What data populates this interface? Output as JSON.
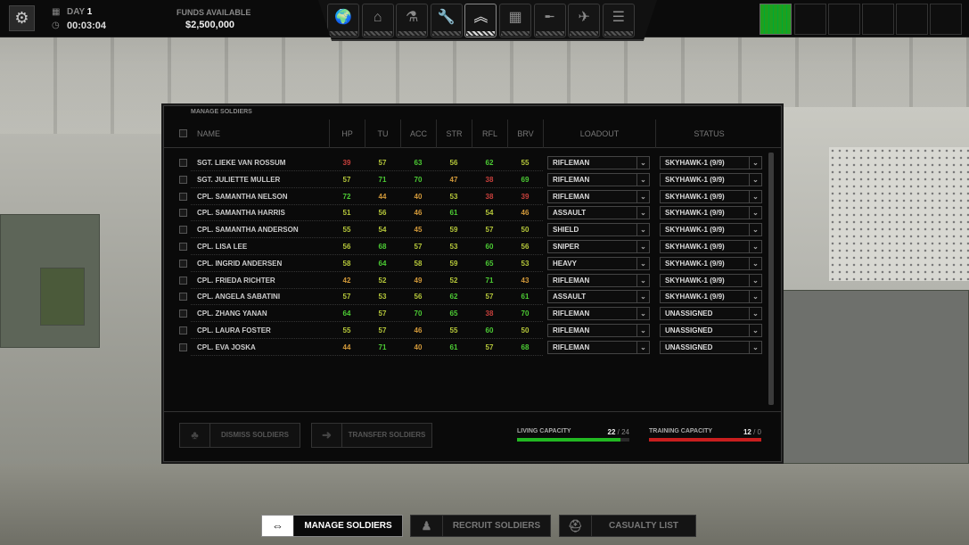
{
  "topbar": {
    "day_label": "DAY",
    "day_value": "1",
    "clock": "00:03:04",
    "funds_label": "FUNDS AVAILABLE",
    "funds_value": "$2,500,000"
  },
  "nav": {
    "items": [
      {
        "icon": "globe-icon",
        "glyph": "🌍"
      },
      {
        "icon": "base-icon",
        "glyph": "⌂"
      },
      {
        "icon": "microscope-icon",
        "glyph": "⚗"
      },
      {
        "icon": "wrench-icon",
        "glyph": "🔧"
      },
      {
        "icon": "sergeant-chevron-icon",
        "glyph": "︽",
        "active": true
      },
      {
        "icon": "crates-icon",
        "glyph": "▦"
      },
      {
        "icon": "rifle-icon",
        "glyph": "╾"
      },
      {
        "icon": "jet-icon",
        "glyph": "✈"
      },
      {
        "icon": "archive-icon",
        "glyph": "☰"
      }
    ]
  },
  "panel": {
    "title": "MANAGE SOLDIERS",
    "headers": {
      "name": "NAME",
      "hp": "HP",
      "tu": "TU",
      "acc": "ACC",
      "str": "STR",
      "rfl": "RFL",
      "brv": "BRV",
      "loadout": "LOADOUT",
      "status": "STATUS"
    },
    "stat_colors": {
      "low": "#c8403c",
      "mid": "#d49a3a",
      "ok": "#b6c83a",
      "high": "#4ccc34"
    },
    "soldiers": [
      {
        "name": "SGT. LIEKE VAN ROSSUM",
        "hp": 39,
        "tu": 57,
        "acc": 63,
        "str": 56,
        "rfl": 62,
        "brv": 55,
        "loadout": "RIFLEMAN",
        "status": "SKYHAWK-1 (9/9)"
      },
      {
        "name": "SGT. JULIETTE MULLER",
        "hp": 57,
        "tu": 71,
        "acc": 70,
        "str": 47,
        "rfl": 38,
        "brv": 69,
        "loadout": "RIFLEMAN",
        "status": "SKYHAWK-1 (9/9)"
      },
      {
        "name": "CPL. SAMANTHA NELSON",
        "hp": 72,
        "tu": 44,
        "acc": 40,
        "str": 53,
        "rfl": 38,
        "brv": 39,
        "loadout": "RIFLEMAN",
        "status": "SKYHAWK-1 (9/9)"
      },
      {
        "name": "CPL. SAMANTHA HARRIS",
        "hp": 51,
        "tu": 56,
        "acc": 46,
        "str": 61,
        "rfl": 54,
        "brv": 46,
        "loadout": "ASSAULT",
        "status": "SKYHAWK-1 (9/9)"
      },
      {
        "name": "CPL. SAMANTHA ANDERSON",
        "hp": 55,
        "tu": 54,
        "acc": 45,
        "str": 59,
        "rfl": 57,
        "brv": 50,
        "loadout": "SHIELD",
        "status": "SKYHAWK-1 (9/9)"
      },
      {
        "name": "CPL. LISA LEE",
        "hp": 56,
        "tu": 68,
        "acc": 57,
        "str": 53,
        "rfl": 60,
        "brv": 56,
        "loadout": "SNIPER",
        "status": "SKYHAWK-1 (9/9)"
      },
      {
        "name": "CPL. INGRID ANDERSEN",
        "hp": 58,
        "tu": 64,
        "acc": 58,
        "str": 59,
        "rfl": 65,
        "brv": 53,
        "loadout": "HEAVY",
        "status": "SKYHAWK-1 (9/9)"
      },
      {
        "name": "CPL. FRIEDA RICHTER",
        "hp": 42,
        "tu": 52,
        "acc": 49,
        "str": 52,
        "rfl": 71,
        "brv": 43,
        "loadout": "RIFLEMAN",
        "status": "SKYHAWK-1 (9/9)"
      },
      {
        "name": "CPL. ANGELA SABATINI",
        "hp": 57,
        "tu": 53,
        "acc": 56,
        "str": 62,
        "rfl": 57,
        "brv": 61,
        "loadout": "ASSAULT",
        "status": "SKYHAWK-1 (9/9)"
      },
      {
        "name": "CPL. ZHANG YANAN",
        "hp": 64,
        "tu": 57,
        "acc": 70,
        "str": 65,
        "rfl": 38,
        "brv": 70,
        "loadout": "RIFLEMAN",
        "status": "UNASSIGNED"
      },
      {
        "name": "CPL. LAURA FOSTER",
        "hp": 55,
        "tu": 57,
        "acc": 46,
        "str": 55,
        "rfl": 60,
        "brv": 50,
        "loadout": "RIFLEMAN",
        "status": "UNASSIGNED"
      },
      {
        "name": "CPL. EVA JOSKA",
        "hp": 44,
        "tu": 71,
        "acc": 40,
        "str": 61,
        "rfl": 57,
        "brv": 68,
        "loadout": "RIFLEMAN",
        "status": "UNASSIGNED"
      }
    ],
    "dismiss_label": "DISMISS SOLDIERS",
    "transfer_label": "TRANSFER SOLDIERS",
    "living": {
      "label": "LIVING CAPACITY",
      "used": "22",
      "total": "24",
      "fill": 0.92,
      "color": "#22b822"
    },
    "training": {
      "label": "TRAINING CAPACITY",
      "used": "12",
      "total": "0",
      "fill": 1.0,
      "color": "#c81e1e"
    }
  },
  "tabs": [
    {
      "label": "MANAGE SOLDIERS",
      "active": true
    },
    {
      "label": "RECRUIT SOLDIERS"
    },
    {
      "label": "CASUALTY LIST"
    }
  ]
}
